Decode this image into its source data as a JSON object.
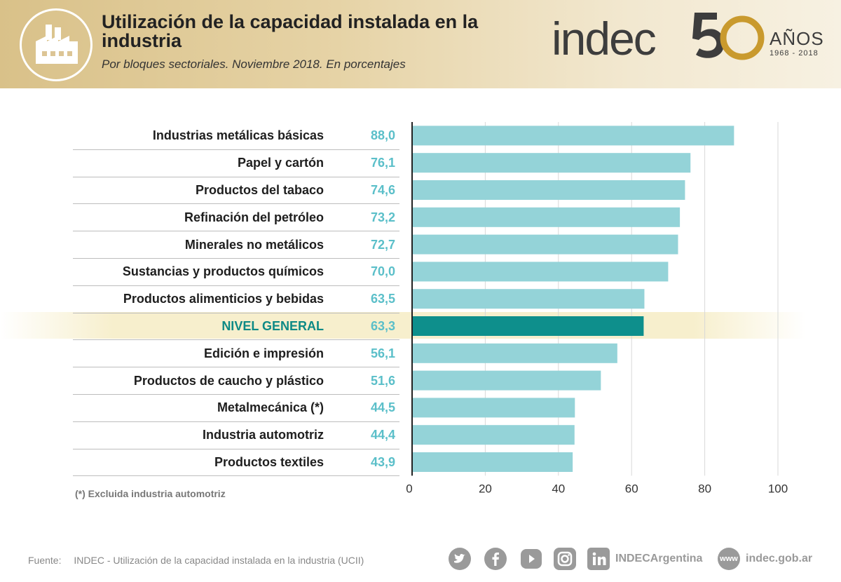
{
  "header": {
    "title": "Utilización de la capacidad instalada en la industria",
    "subtitle": "Por bloques sectoriales. Noviembre 2018. En porcentajes",
    "logo_text": "indec",
    "logo_fifty": "50",
    "logo_anos": "AÑOS",
    "logo_years": "1968 - 2018",
    "icon": "factory-icon"
  },
  "chart_data": {
    "type": "bar",
    "orientation": "horizontal",
    "categories": [
      "Industrias metálicas básicas",
      "Papel y cartón",
      "Productos del tabaco",
      "Refinación del petróleo",
      "Minerales no metálicos",
      "Sustancias y productos químicos",
      "Productos alimenticios y bebidas",
      "NIVEL GENERAL",
      "Edición e impresión",
      "Productos de caucho y plástico",
      "Metalmecánica (*)",
      "Industria automotriz",
      "Productos textiles"
    ],
    "values": [
      88.0,
      76.1,
      74.6,
      73.2,
      72.7,
      70.0,
      63.5,
      63.3,
      56.1,
      51.6,
      44.5,
      44.4,
      43.9
    ],
    "value_labels": [
      "88,0",
      "76,1",
      "74,6",
      "73,2",
      "72,7",
      "70,0",
      "63,5",
      "63,3",
      "56,1",
      "51,6",
      "44,5",
      "44,4",
      "43,9"
    ],
    "highlight": "NIVEL GENERAL",
    "xlim": [
      0,
      100
    ],
    "xticks": [
      0,
      20,
      40,
      60,
      80,
      100
    ],
    "xtick_labels": [
      "0",
      "20",
      "40",
      "60",
      "80",
      "100"
    ],
    "grid": true,
    "colors": {
      "bar": "#94d3d8",
      "highlight_bar": "#0e8f8c",
      "highlight_band": "#f7efcd"
    }
  },
  "footnote": "(*) Excluida industria automotriz",
  "footer": {
    "source_label": "Fuente:",
    "source_text": "INDEC - Utilización de la capacidad instalada en la industria (UCII)",
    "social": [
      "twitter-icon",
      "facebook-icon",
      "youtube-icon",
      "instagram-icon",
      "linkedin-icon"
    ],
    "handle": "INDECArgentina",
    "www_label": "www",
    "website": "indec.gob.ar"
  }
}
